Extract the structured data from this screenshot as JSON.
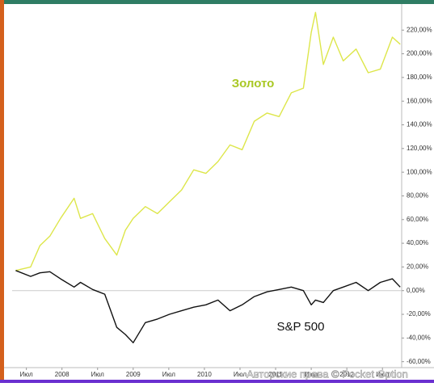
{
  "chart_data": {
    "type": "line",
    "annotations": [
      "Золото",
      "S&P 500"
    ],
    "watermark": "Авторские права © Pocket Option",
    "x": [
      2007.35,
      2007.56,
      2007.69,
      2007.83,
      2007.98,
      2008.17,
      2008.26,
      2008.43,
      2008.6,
      2008.77,
      2008.89,
      2009.0,
      2009.17,
      2009.34,
      2009.51,
      2009.68,
      2009.85,
      2010.02,
      2010.19,
      2010.36,
      2010.53,
      2010.7,
      2010.88,
      2011.05,
      2011.22,
      2011.39,
      2011.5,
      2011.56,
      2011.67,
      2011.81,
      2011.95,
      2012.13,
      2012.3,
      2012.47,
      2012.64,
      2012.75
    ],
    "series": [
      {
        "name": "Золото",
        "color": "#dde64a",
        "values": [
          17,
          20,
          38,
          46,
          61,
          78,
          61,
          65,
          44,
          30,
          51,
          61,
          71,
          65,
          75,
          85,
          102,
          99,
          109,
          123,
          119,
          143,
          150,
          147,
          167,
          171,
          218,
          235,
          191,
          214,
          194,
          204,
          184,
          187,
          214,
          208
        ]
      },
      {
        "name": "S&P 500",
        "color": "#111111",
        "values": [
          17,
          12,
          15,
          16,
          10,
          3,
          7,
          1,
          -3,
          -31,
          -37,
          -44,
          -27,
          -24,
          -20,
          -17,
          -14,
          -12,
          -8,
          -17,
          -12,
          -5,
          -1,
          1,
          3,
          0,
          -12,
          -8,
          -10,
          0,
          3,
          7,
          0,
          7,
          10,
          3
        ]
      }
    ],
    "xlim": [
      2007.3,
      2012.77
    ],
    "xticks": [
      {
        "value": 2007.5,
        "label": "Июл"
      },
      2008,
      {
        "value": 2008.5,
        "label": "Июл"
      },
      2009,
      {
        "value": 2009.5,
        "label": "Июл"
      },
      2010,
      {
        "value": 2010.5,
        "label": "Июл"
      },
      2011,
      {
        "value": 2011.5,
        "label": "Июл"
      },
      2012,
      {
        "value": 2012.5,
        "label": "Июл"
      }
    ],
    "ylim": [
      -65,
      242
    ],
    "yticks": [
      {
        "value": -60,
        "label": "-60,00%"
      },
      {
        "value": -40,
        "label": "-40,00%"
      },
      {
        "value": -20,
        "label": "-20,00%"
      },
      {
        "value": 0,
        "label": "0,00%"
      },
      {
        "value": 20,
        "label": "20,00%"
      },
      {
        "value": 40,
        "label": "40,00%"
      },
      {
        "value": 60,
        "label": "60,00%"
      },
      {
        "value": 80,
        "label": "80,00%"
      },
      {
        "value": 100,
        "label": "100,00%"
      },
      {
        "value": 120,
        "label": "120,00%"
      },
      {
        "value": 140,
        "label": "140,00%"
      },
      {
        "value": 160,
        "label": "160,00%"
      },
      {
        "value": 180,
        "label": "180,00%"
      },
      {
        "value": 200,
        "label": "200,00%"
      },
      {
        "value": 220,
        "label": "220,00%"
      }
    ],
    "y_axis_side": "right",
    "grid": false
  }
}
